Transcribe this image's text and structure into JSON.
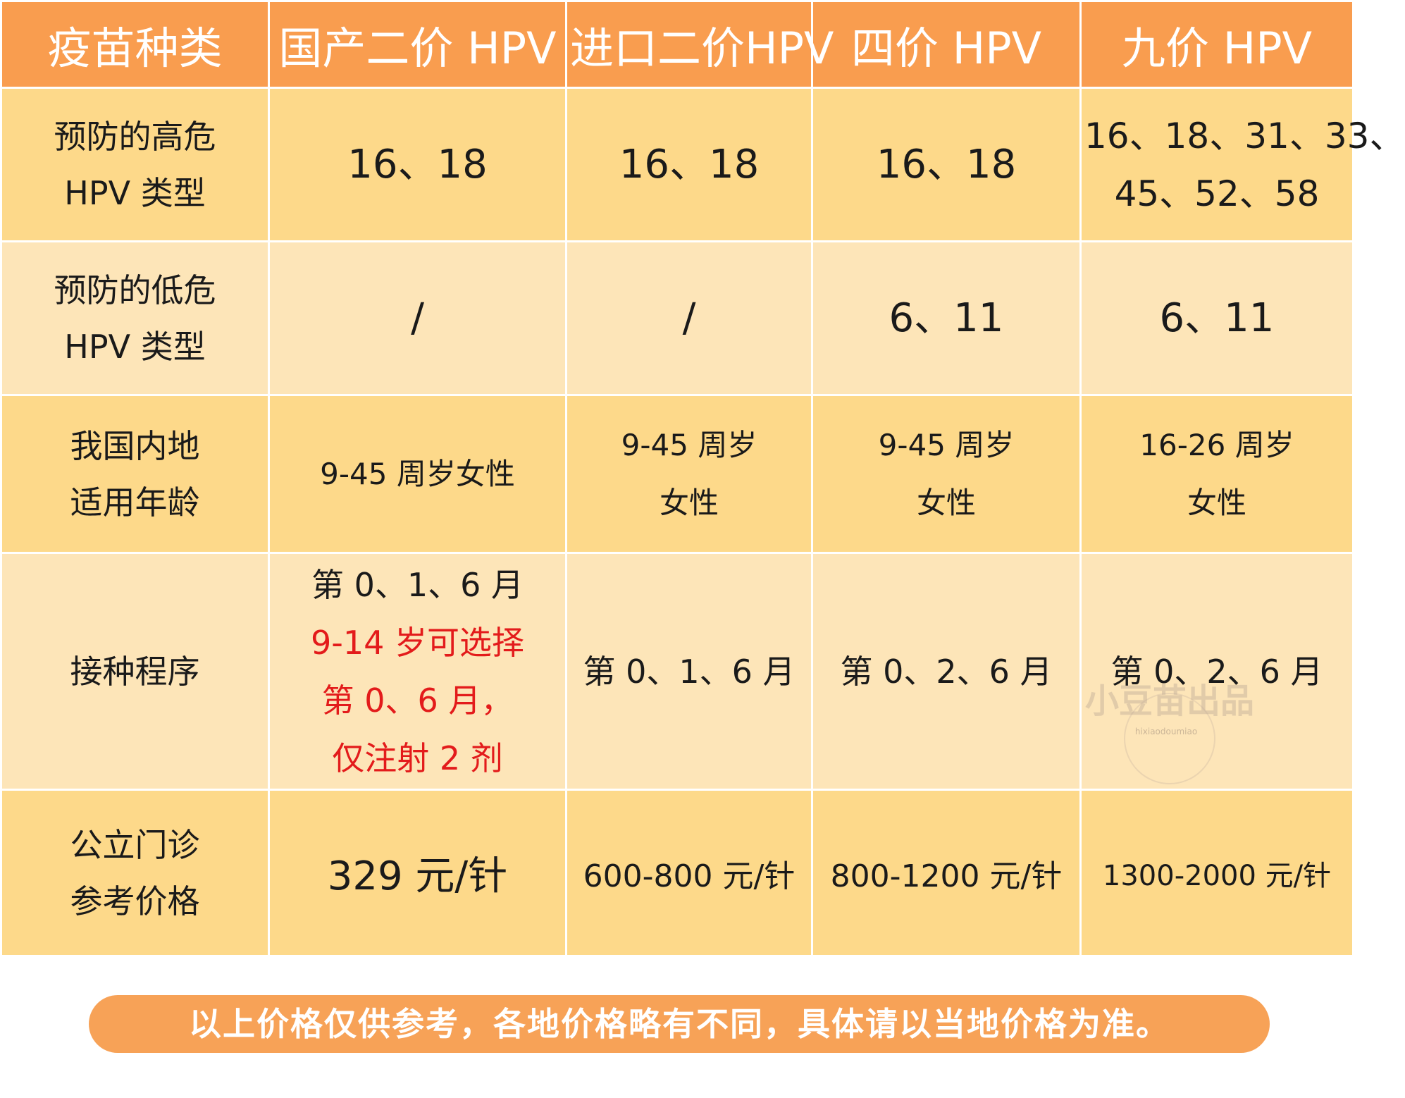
{
  "table": {
    "headers": [
      "疫苗种类",
      "国产二价 HPV",
      "进口二价HPV",
      "四价 HPV",
      "九价 HPV"
    ],
    "rows": [
      {
        "label_lines": [
          "预防的高危",
          "HPV 类型"
        ],
        "cells": [
          {
            "lines": [
              "16、18"
            ]
          },
          {
            "lines": [
              "16、18"
            ]
          },
          {
            "lines": [
              "16、18"
            ]
          },
          {
            "lines": [
              "16、18、31、33、",
              "45、52、58"
            ]
          }
        ]
      },
      {
        "label_lines": [
          "预防的低危",
          "HPV 类型"
        ],
        "cells": [
          {
            "lines": [
              "/"
            ]
          },
          {
            "lines": [
              "/"
            ]
          },
          {
            "lines": [
              "6、11"
            ]
          },
          {
            "lines": [
              "6、11"
            ]
          }
        ]
      },
      {
        "label_lines": [
          "我国内地",
          "适用年龄"
        ],
        "cells": [
          {
            "lines": [
              "9-45 周岁女性"
            ]
          },
          {
            "lines": [
              "9-45 周岁",
              "女性"
            ]
          },
          {
            "lines": [
              "9-45 周岁",
              "女性"
            ]
          },
          {
            "lines": [
              "16-26 周岁",
              "女性"
            ]
          }
        ]
      },
      {
        "label_lines": [
          "接种程序"
        ],
        "cells": [
          {
            "lines": [
              "第 0、1、6 月"
            ],
            "red_lines": [
              "9-14 岁可选择",
              "第 0、6 月，",
              "仅注射 2 剂"
            ]
          },
          {
            "lines": [
              "第 0、1、6 月"
            ]
          },
          {
            "lines": [
              "第 0、2、6 月"
            ]
          },
          {
            "lines": [
              "第 0、2、6 月"
            ]
          }
        ]
      },
      {
        "label_lines": [
          "公立门诊",
          "参考价格"
        ],
        "cells": [
          {
            "lines": [
              "329 元/针"
            ]
          },
          {
            "lines": [
              "600-800 元/针"
            ]
          },
          {
            "lines": [
              "800-1200 元/针"
            ]
          },
          {
            "lines": [
              "1300-2000 元/针"
            ]
          }
        ]
      }
    ]
  },
  "watermark": {
    "text": "小豆苗出品",
    "sub": "hixiaodoumiao"
  },
  "note": "以上价格仅供参考，各地价格略有不同，具体请以当地价格为准。",
  "colors": {
    "header_bg": "#f99d4f",
    "row_dark_bg": "#fdd98a",
    "row_light_bg": "#fde5b8",
    "highlight_red": "#e31b1b",
    "banner_bg": "#f7a257"
  }
}
